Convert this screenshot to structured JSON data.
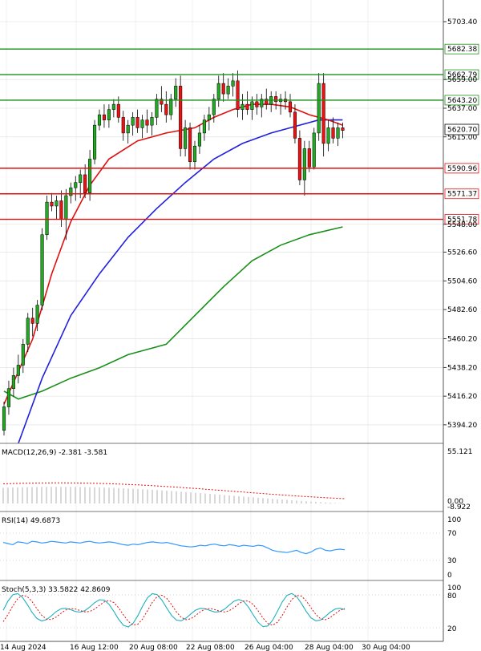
{
  "chart_data": {
    "type": "candlestick",
    "y_ticks": [
      "5703.40",
      "5659.00",
      "5637.00",
      "5615.00",
      "5548.00",
      "5526.60",
      "5504.60",
      "5482.60",
      "5460.20",
      "5438.20",
      "5416.20",
      "5394.20"
    ],
    "y_tick_values": [
      5703.4,
      5659.0,
      5637.0,
      5615.0,
      5548.0,
      5526.6,
      5504.6,
      5482.6,
      5460.2,
      5438.2,
      5416.2,
      5394.2
    ],
    "y_range": [
      5380,
      5720
    ],
    "x_ticks": [
      "14 Aug 2024",
      "16 Aug 12:00",
      "20 Aug 08:00",
      "22 Aug 08:00",
      "26 Aug 04:00",
      "28 Aug 04:00",
      "30 Aug 04:00"
    ],
    "x_tick_candle_index": [
      0,
      15,
      29,
      42,
      55,
      68,
      80
    ],
    "current_price": {
      "label": "5620.70",
      "value": 5620.7
    },
    "levels": [
      {
        "label": "5682.38",
        "value": 5682.38,
        "color": "#1a8f1a"
      },
      {
        "label": "5662.79",
        "value": 5662.79,
        "color": "#1a8f1a"
      },
      {
        "label": "5643.20",
        "value": 5643.2,
        "color": "#1a8f1a"
      },
      {
        "label": "5590.96",
        "value": 5590.96,
        "color": "#e01010"
      },
      {
        "label": "5571.37",
        "value": 5571.37,
        "color": "#e01010"
      },
      {
        "label": "5551.78",
        "value": 5551.78,
        "color": "#e01010"
      }
    ],
    "candles": [
      [
        5390,
        5412,
        5386,
        5408
      ],
      [
        5408,
        5428,
        5402,
        5422
      ],
      [
        5422,
        5438,
        5416,
        5432
      ],
      [
        5432,
        5448,
        5426,
        5440
      ],
      [
        5440,
        5460,
        5434,
        5456
      ],
      [
        5456,
        5480,
        5450,
        5476
      ],
      [
        5476,
        5484,
        5462,
        5472
      ],
      [
        5472,
        5490,
        5466,
        5486
      ],
      [
        5486,
        5545,
        5482,
        5540
      ],
      [
        5540,
        5570,
        5536,
        5565
      ],
      [
        5565,
        5572,
        5558,
        5562
      ],
      [
        5562,
        5570,
        5552,
        5566
      ],
      [
        5566,
        5574,
        5546,
        5552
      ],
      [
        5552,
        5575,
        5536,
        5570
      ],
      [
        5570,
        5580,
        5564,
        5576
      ],
      [
        5576,
        5585,
        5566,
        5580
      ],
      [
        5580,
        5590,
        5568,
        5586
      ],
      [
        5586,
        5594,
        5568,
        5572
      ],
      [
        5572,
        5605,
        5566,
        5598
      ],
      [
        5598,
        5628,
        5594,
        5624
      ],
      [
        5624,
        5636,
        5620,
        5632
      ],
      [
        5632,
        5640,
        5622,
        5628
      ],
      [
        5628,
        5640,
        5622,
        5636
      ],
      [
        5636,
        5644,
        5630,
        5640
      ],
      [
        5640,
        5646,
        5626,
        5630
      ],
      [
        5630,
        5635,
        5612,
        5618
      ],
      [
        5618,
        5628,
        5610,
        5624
      ],
      [
        5624,
        5634,
        5616,
        5630
      ],
      [
        5630,
        5636,
        5618,
        5622
      ],
      [
        5622,
        5632,
        5614,
        5628
      ],
      [
        5628,
        5636,
        5618,
        5624
      ],
      [
        5624,
        5634,
        5616,
        5630
      ],
      [
        5630,
        5648,
        5624,
        5644
      ],
      [
        5644,
        5654,
        5634,
        5640
      ],
      [
        5640,
        5650,
        5626,
        5632
      ],
      [
        5632,
        5648,
        5628,
        5644
      ],
      [
        5644,
        5660,
        5638,
        5654
      ],
      [
        5654,
        5662,
        5600,
        5606
      ],
      [
        5606,
        5628,
        5600,
        5622
      ],
      [
        5622,
        5626,
        5590,
        5596
      ],
      [
        5596,
        5612,
        5590,
        5608
      ],
      [
        5608,
        5624,
        5602,
        5618
      ],
      [
        5618,
        5632,
        5612,
        5628
      ],
      [
        5628,
        5638,
        5620,
        5632
      ],
      [
        5632,
        5648,
        5626,
        5644
      ],
      [
        5644,
        5662,
        5638,
        5656
      ],
      [
        5656,
        5664,
        5642,
        5648
      ],
      [
        5648,
        5660,
        5644,
        5654
      ],
      [
        5654,
        5664,
        5646,
        5658
      ],
      [
        5658,
        5666,
        5630,
        5636
      ],
      [
        5636,
        5648,
        5628,
        5640
      ],
      [
        5640,
        5650,
        5632,
        5636
      ],
      [
        5636,
        5646,
        5628,
        5642
      ],
      [
        5642,
        5648,
        5632,
        5638
      ],
      [
        5638,
        5648,
        5630,
        5644
      ],
      [
        5644,
        5652,
        5636,
        5640
      ],
      [
        5640,
        5650,
        5634,
        5646
      ],
      [
        5646,
        5650,
        5636,
        5642
      ],
      [
        5642,
        5648,
        5632,
        5644
      ],
      [
        5644,
        5650,
        5636,
        5642
      ],
      [
        5642,
        5648,
        5630,
        5634
      ],
      [
        5634,
        5640,
        5610,
        5614
      ],
      [
        5614,
        5620,
        5578,
        5582
      ],
      [
        5582,
        5612,
        5570,
        5606
      ],
      [
        5606,
        5612,
        5588,
        5592
      ],
      [
        5592,
        5622,
        5590,
        5618
      ],
      [
        5618,
        5664,
        5612,
        5656
      ],
      [
        5656,
        5664,
        5600,
        5610
      ],
      [
        5610,
        5628,
        5604,
        5622
      ],
      [
        5622,
        5630,
        5610,
        5614
      ],
      [
        5614,
        5626,
        5608,
        5622
      ],
      [
        5622,
        5626,
        5614,
        5620
      ]
    ],
    "ma_red": [
      [
        0,
        5410
      ],
      [
        6,
        5460
      ],
      [
        10,
        5510
      ],
      [
        14,
        5550
      ],
      [
        18,
        5578
      ],
      [
        22,
        5598
      ],
      [
        28,
        5612
      ],
      [
        34,
        5618
      ],
      [
        40,
        5622
      ],
      [
        44,
        5630
      ],
      [
        48,
        5636
      ],
      [
        52,
        5640
      ],
      [
        56,
        5640
      ],
      [
        60,
        5638
      ],
      [
        64,
        5632
      ],
      [
        68,
        5628
      ],
      [
        71,
        5624
      ]
    ],
    "ma_blue": [
      [
        3,
        5380
      ],
      [
        8,
        5430
      ],
      [
        14,
        5478
      ],
      [
        20,
        5510
      ],
      [
        26,
        5538
      ],
      [
        32,
        5560
      ],
      [
        38,
        5580
      ],
      [
        44,
        5598
      ],
      [
        50,
        5610
      ],
      [
        56,
        5618
      ],
      [
        62,
        5624
      ],
      [
        66,
        5628
      ],
      [
        71,
        5628
      ]
    ],
    "ma_green": [
      [
        0,
        5420
      ],
      [
        3,
        5414
      ],
      [
        8,
        5420
      ],
      [
        14,
        5430
      ],
      [
        20,
        5438
      ],
      [
        26,
        5448
      ],
      [
        30,
        5452
      ],
      [
        34,
        5456
      ],
      [
        40,
        5478
      ],
      [
        46,
        5500
      ],
      [
        52,
        5520
      ],
      [
        58,
        5532
      ],
      [
        64,
        5540
      ],
      [
        71,
        5546
      ]
    ],
    "indicators": {
      "macd": {
        "label": "MACD(12,26,9) -2.381 -3.581",
        "ticks": [
          "55.121",
          "0.00",
          "-8.922"
        ]
      },
      "rsi": {
        "label": "RSI(14) 49.6873",
        "ticks": [
          "100",
          "70",
          "30",
          "0"
        ]
      },
      "stoch": {
        "label": "Stoch(5,3,3) 33.5822 42.8609",
        "ticks": [
          "100",
          "80",
          "20"
        ]
      }
    }
  }
}
